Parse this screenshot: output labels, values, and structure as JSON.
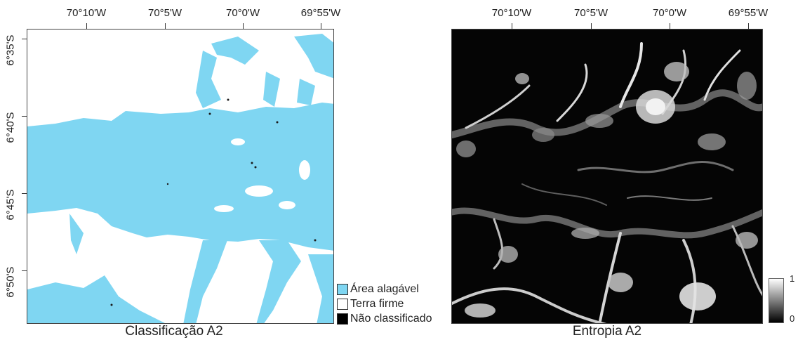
{
  "longitude_labels": [
    "70°10'W",
    "70°5'W",
    "70°0'W",
    "69°55'W"
  ],
  "latitude_labels": [
    "6°35'S",
    "6°40'S",
    "6°45'S",
    "6°50'S"
  ],
  "left_map": {
    "caption": "Classificação A2"
  },
  "right_map": {
    "caption": "Entropia A2"
  },
  "legend": {
    "items": [
      {
        "label": "Área alagável",
        "color": "#7fd6f2"
      },
      {
        "label": "Terra firme",
        "color": "#ffffff"
      },
      {
        "label": "Não classificado",
        "color": "#000000"
      }
    ]
  },
  "colorbar": {
    "max_label": "1",
    "min_label": "0"
  },
  "colors": {
    "flooded": "#7fd6f2",
    "land": "#ffffff",
    "unclassified": "#000000"
  }
}
